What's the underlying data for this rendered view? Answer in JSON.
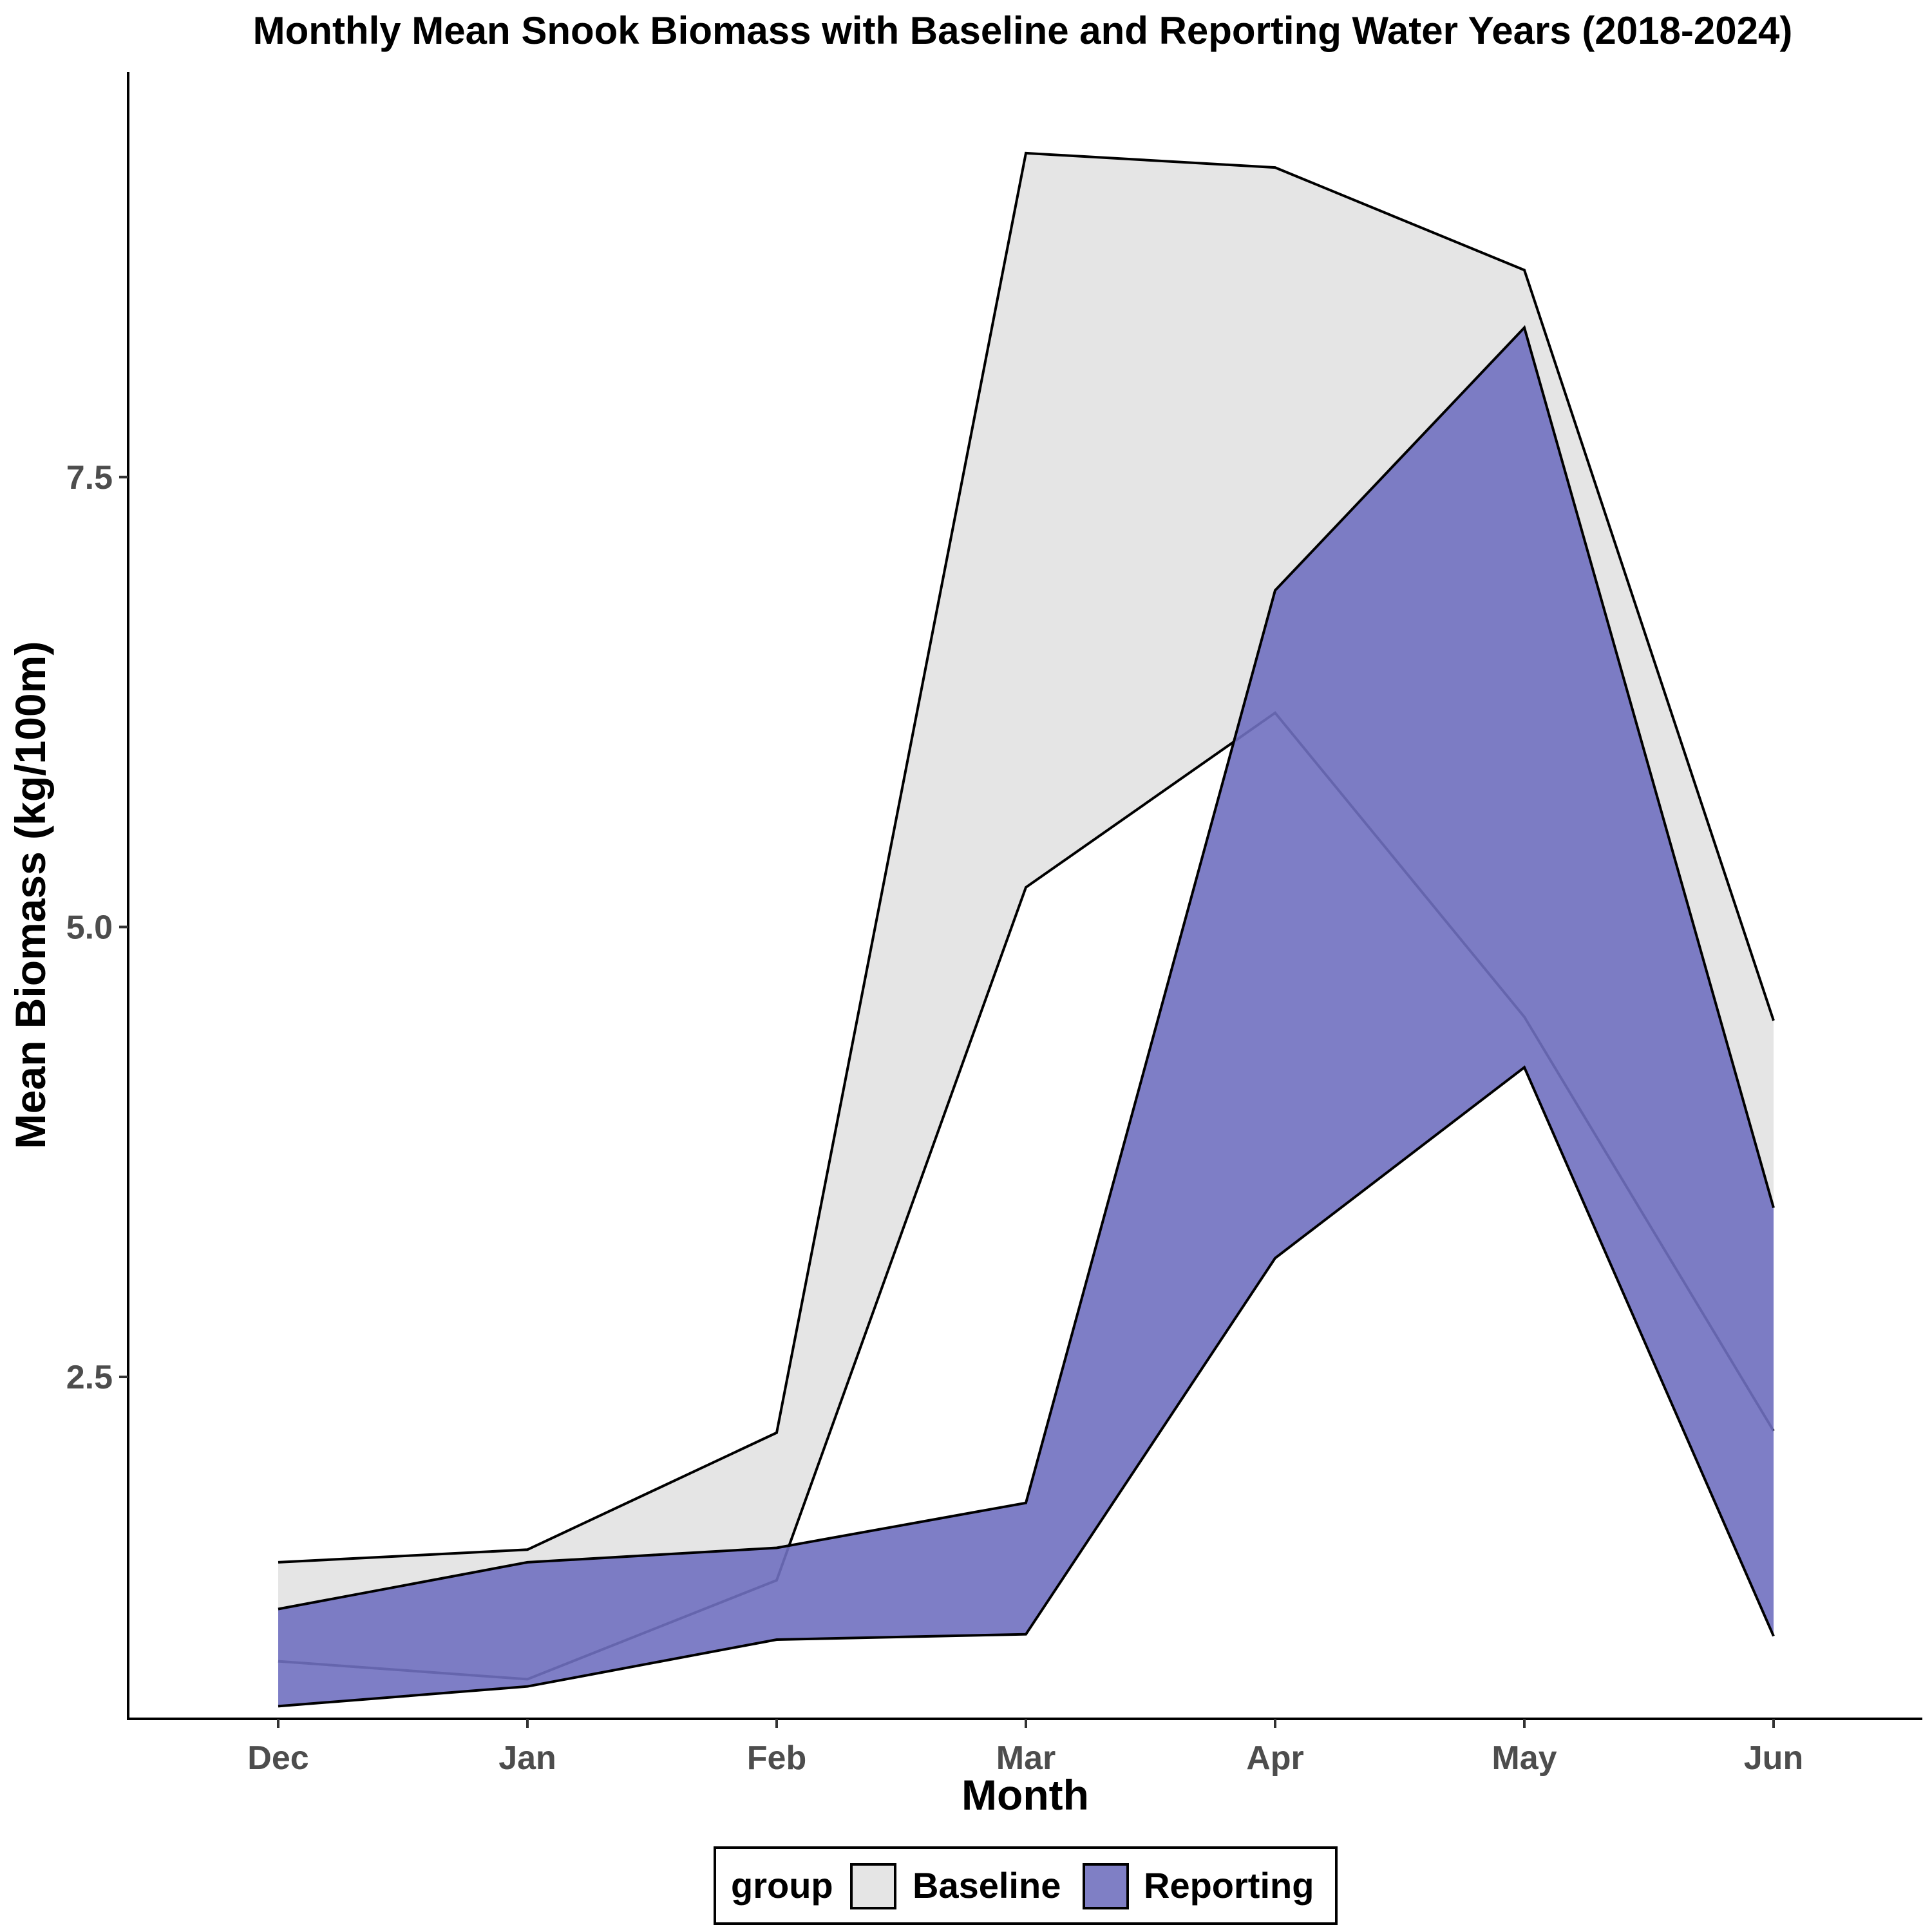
{
  "chart_data": {
    "type": "area",
    "title": "Monthly Mean Snook Biomass with Baseline and Reporting Water Years (2018-2024)",
    "xlabel": "Month",
    "ylabel": "Mean Biomass (kg/100m)",
    "categories": [
      "Dec",
      "Jan",
      "Feb",
      "Mar",
      "Apr",
      "May",
      "Jun"
    ],
    "ylim": [
      0.6,
      9.75
    ],
    "yticks": [
      2.5,
      5.0,
      7.5
    ],
    "ytick_labels": [
      "2.5",
      "5.0",
      "7.5"
    ],
    "grid": false,
    "legend": {
      "title": "group",
      "position": "bottom",
      "entries": [
        "Baseline",
        "Reporting"
      ]
    },
    "series": [
      {
        "name": "Baseline",
        "color": "#e5e5e5",
        "lower": [
          0.92,
          0.82,
          1.37,
          5.22,
          6.19,
          4.5,
          2.2
        ],
        "upper": [
          1.47,
          1.54,
          2.19,
          9.3,
          9.22,
          8.65,
          4.48
        ]
      },
      {
        "name": "Reporting",
        "color": "#7070c0",
        "lower": [
          0.67,
          0.78,
          1.04,
          1.07,
          3.16,
          4.22,
          1.06
        ],
        "upper": [
          1.21,
          1.47,
          1.55,
          1.8,
          6.87,
          8.33,
          3.44
        ]
      }
    ]
  }
}
